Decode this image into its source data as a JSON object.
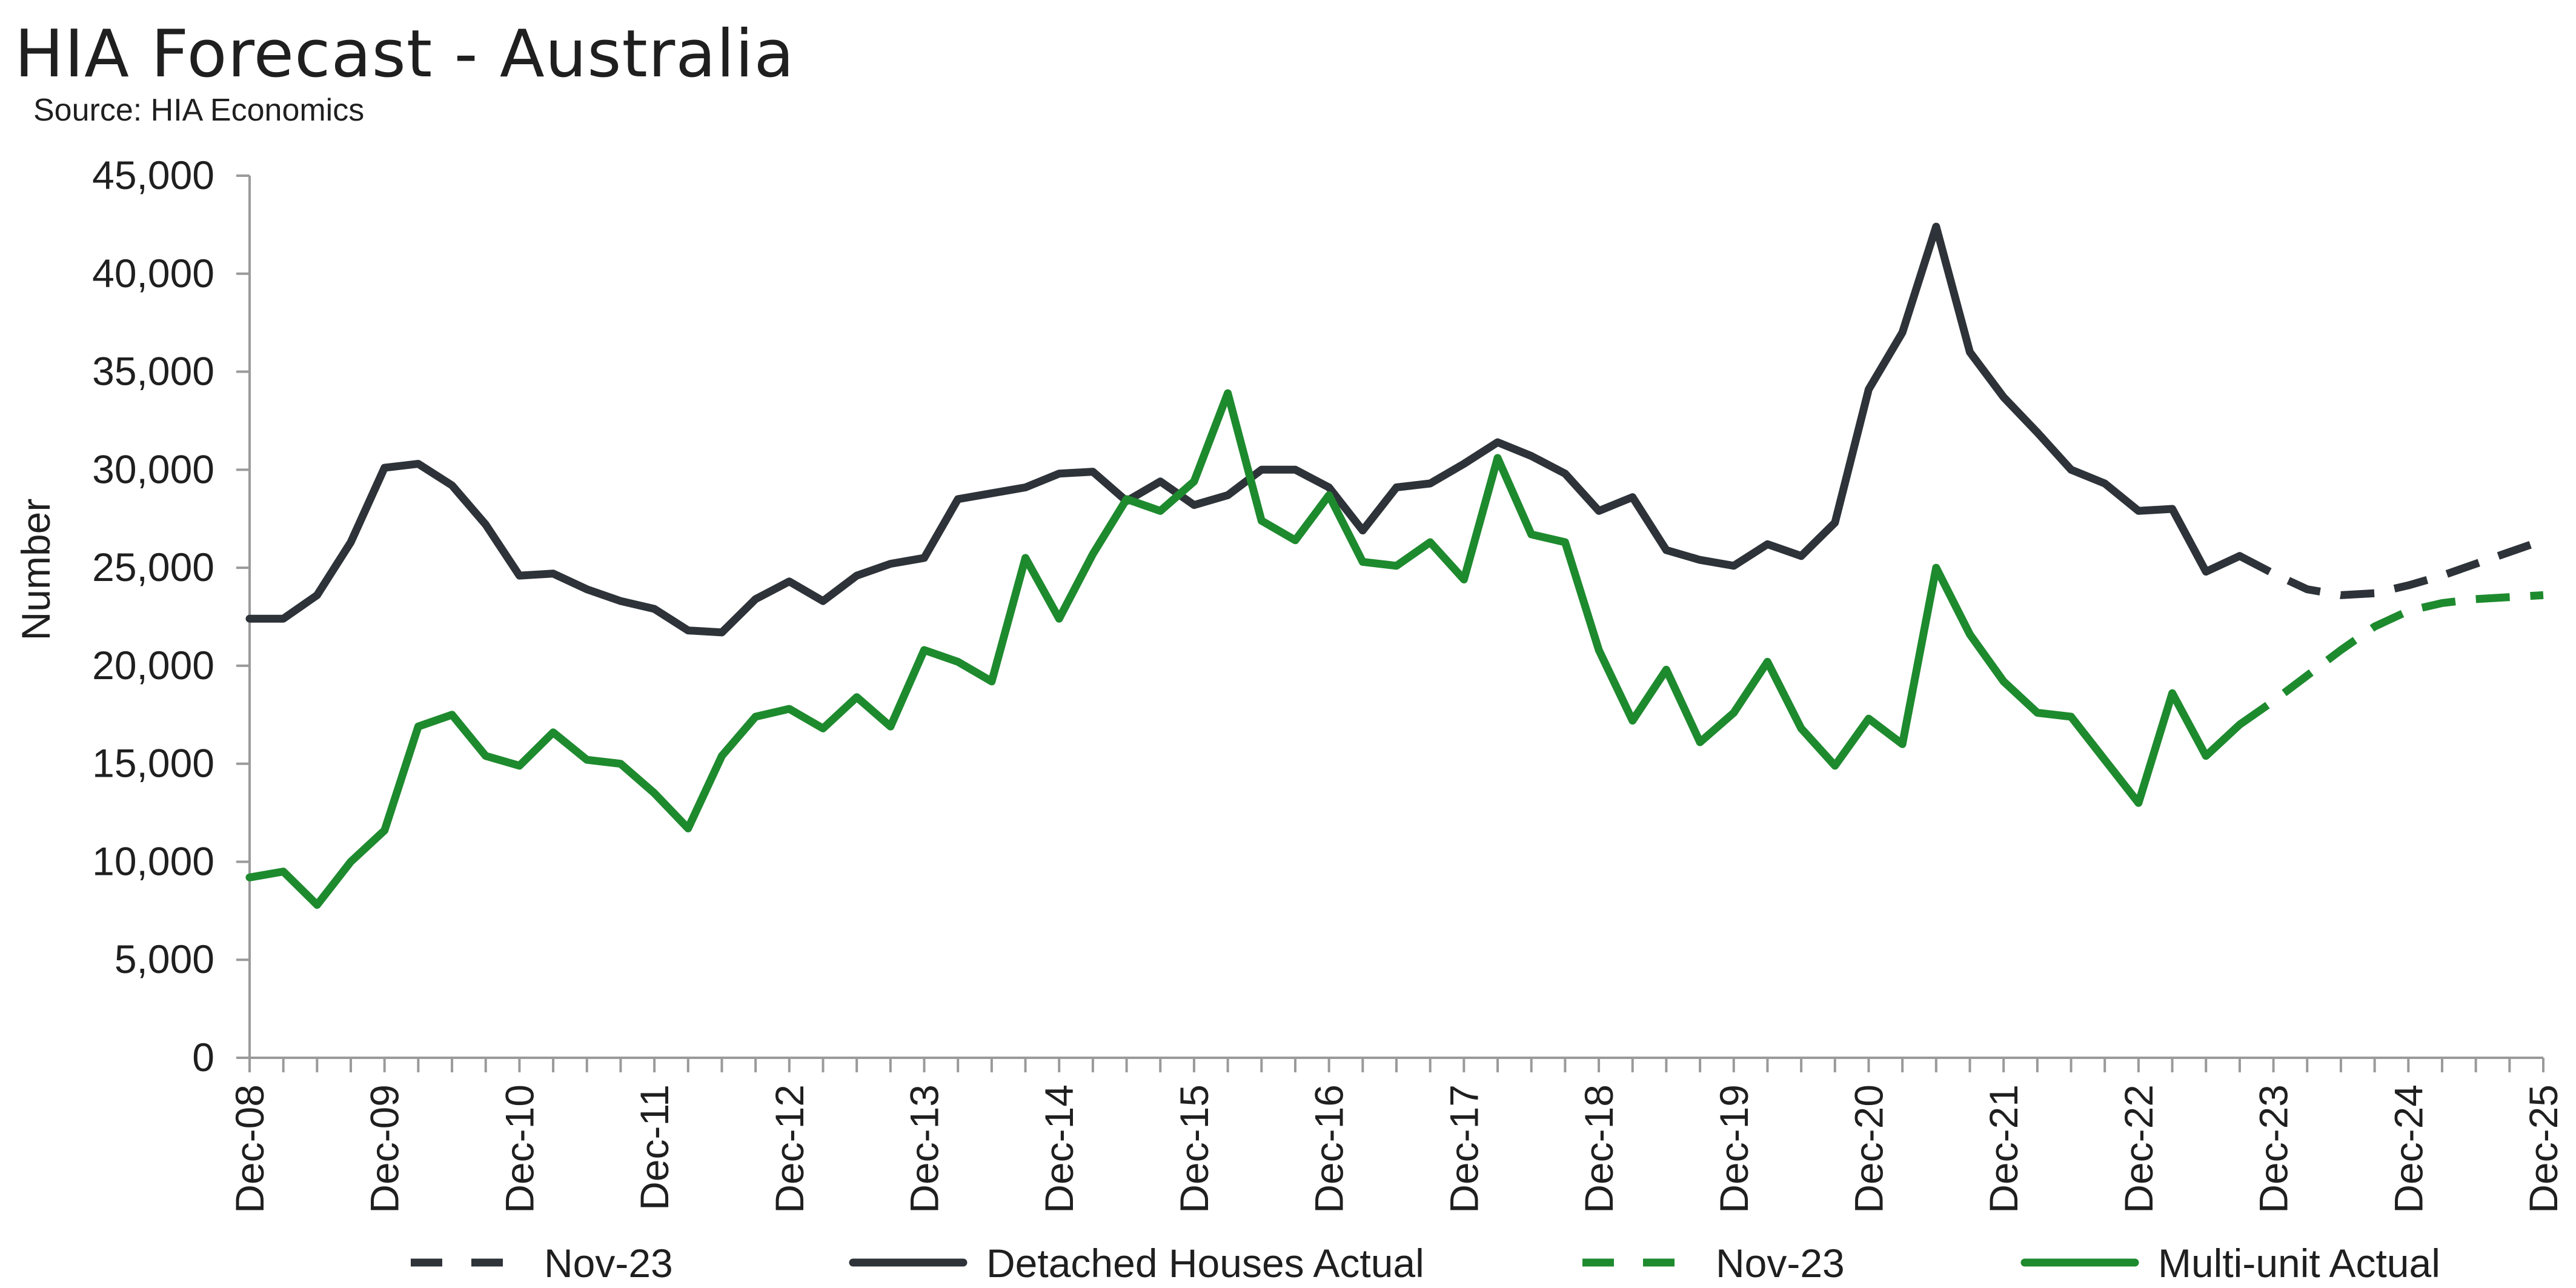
{
  "title": "HIA Forecast - Australia",
  "subtitle": "Source: HIA Economics",
  "chart_data": {
    "type": "line",
    "ylabel": "Number",
    "xlabel": "",
    "ylim": [
      0,
      45000
    ],
    "yticks": [
      0,
      5000,
      10000,
      15000,
      20000,
      25000,
      30000,
      35000,
      40000,
      45000
    ],
    "ytick_labels": [
      "0",
      "5,000",
      "10,000",
      "15,000",
      "20,000",
      "25,000",
      "30,000",
      "35,000",
      "40,000",
      "45,000"
    ],
    "x_categories": [
      "Dec-08",
      "Mar-09",
      "Jun-09",
      "Sep-09",
      "Dec-09",
      "Mar-10",
      "Jun-10",
      "Sep-10",
      "Dec-10",
      "Mar-11",
      "Jun-11",
      "Sep-11",
      "Dec-11",
      "Mar-12",
      "Jun-12",
      "Sep-12",
      "Dec-12",
      "Mar-13",
      "Jun-13",
      "Sep-13",
      "Dec-13",
      "Mar-14",
      "Jun-14",
      "Sep-14",
      "Dec-14",
      "Mar-15",
      "Jun-15",
      "Sep-15",
      "Dec-15",
      "Mar-16",
      "Jun-16",
      "Sep-16",
      "Dec-16",
      "Mar-17",
      "Jun-17",
      "Sep-17",
      "Dec-17",
      "Mar-18",
      "Jun-18",
      "Sep-18",
      "Dec-18",
      "Mar-19",
      "Jun-19",
      "Sep-19",
      "Dec-19",
      "Mar-20",
      "Jun-20",
      "Sep-20",
      "Dec-20",
      "Mar-21",
      "Jun-21",
      "Sep-21",
      "Dec-21",
      "Mar-22",
      "Jun-22",
      "Sep-22",
      "Dec-22",
      "Mar-23",
      "Jun-23",
      "Sep-23",
      "Dec-23",
      "Mar-24",
      "Jun-24",
      "Sep-24",
      "Dec-24",
      "Mar-25",
      "Jun-25",
      "Sep-25",
      "Dec-25"
    ],
    "x_tick_labels": [
      "Dec-08",
      "Dec-09",
      "Dec-10",
      "Dec-11",
      "Dec-12",
      "Dec-13",
      "Dec-14",
      "Dec-15",
      "Dec-16",
      "Dec-17",
      "Dec-18",
      "Dec-19",
      "Dec-20",
      "Dec-21",
      "Dec-22",
      "Dec-23",
      "Dec-24",
      "Dec-25"
    ],
    "series": [
      {
        "name": "Nov-23",
        "color": "#2d3338",
        "style": "dashed",
        "start": "Sep-23",
        "values": [
          25600,
          24700,
          23900,
          23600,
          23700,
          24100,
          24600,
          25200,
          25800,
          26400
        ]
      },
      {
        "name": "Detached Houses Actual",
        "color": "#2d3338",
        "style": "solid",
        "start": "Dec-08",
        "values": [
          22400,
          22400,
          23600,
          26300,
          30100,
          30300,
          29200,
          27200,
          24600,
          24700,
          23900,
          23300,
          22900,
          21800,
          21700,
          23400,
          24300,
          23300,
          24600,
          25200,
          25500,
          28500,
          28800,
          29100,
          29800,
          29900,
          28400,
          29400,
          28200,
          28700,
          30000,
          30000,
          29100,
          26900,
          29100,
          29300,
          30300,
          31400,
          30700,
          29800,
          27900,
          28600,
          25900,
          25400,
          25100,
          26200,
          25600,
          27300,
          34100,
          37000,
          42400,
          36000,
          33700,
          31900,
          30000,
          29300,
          27900,
          28000,
          24800,
          25600
        ]
      },
      {
        "name": "Nov-23",
        "color": "#1e8a2e",
        "style": "dashed",
        "start": "Sep-23",
        "values": [
          17000,
          18200,
          19500,
          20800,
          22000,
          22800,
          23200,
          23400,
          23500,
          23600
        ]
      },
      {
        "name": "Multi-unit Actual",
        "color": "#1e8a2e",
        "style": "solid",
        "start": "Dec-08",
        "values": [
          9200,
          9500,
          7800,
          10000,
          11600,
          16900,
          17500,
          15400,
          14900,
          16600,
          15200,
          15000,
          13500,
          11700,
          15400,
          17400,
          17800,
          16800,
          18400,
          16900,
          20800,
          20200,
          19200,
          25500,
          22400,
          25700,
          28500,
          27900,
          29400,
          33900,
          27400,
          26400,
          28700,
          25300,
          25100,
          26300,
          24400,
          30600,
          26700,
          26300,
          20800,
          17200,
          19800,
          16100,
          17600,
          20200,
          16800,
          14900,
          17300,
          16000,
          25000,
          21600,
          19200,
          17600,
          17400,
          15200,
          13000,
          18600,
          15400,
          17000
        ]
      }
    ],
    "legend": {
      "placement": "bottom",
      "entries": [
        {
          "label": "Nov-23",
          "color": "#2d3338",
          "style": "dashed"
        },
        {
          "label": "Detached Houses Actual",
          "color": "#2d3338",
          "style": "solid"
        },
        {
          "label": "Nov-23",
          "color": "#1e8a2e",
          "style": "dashed"
        },
        {
          "label": "Multi-unit Actual",
          "color": "#1e8a2e",
          "style": "solid"
        }
      ]
    },
    "grid": false
  }
}
